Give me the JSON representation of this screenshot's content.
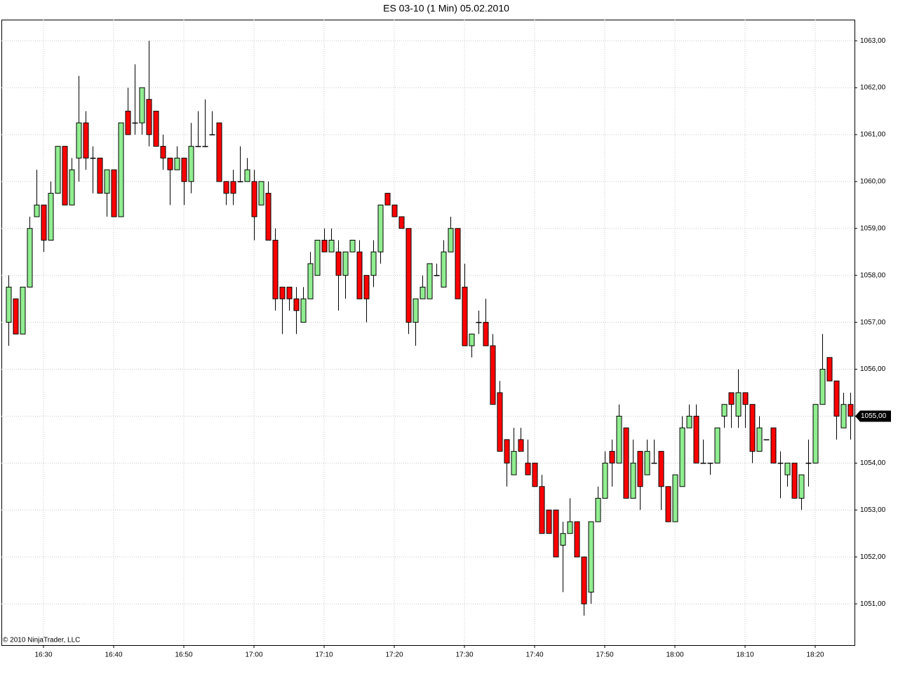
{
  "chart_data": {
    "type": "candlestick",
    "title": "ES 03-10 (1 Min)  05.02.2010",
    "copyright": "© 2010 NinjaTrader, LLC",
    "up_color": "#90ee90",
    "down_color": "#ff0000",
    "grid": true,
    "x": [
      "16:25",
      "16:26",
      "16:27",
      "16:28",
      "16:29",
      "16:30",
      "16:31",
      "16:32",
      "16:33",
      "16:34",
      "16:35",
      "16:36",
      "16:37",
      "16:38",
      "16:39",
      "16:40",
      "16:41",
      "16:42",
      "16:43",
      "16:44",
      "16:45",
      "16:46",
      "16:47",
      "16:48",
      "16:49",
      "16:50",
      "16:51",
      "16:52",
      "16:53",
      "16:54",
      "16:55",
      "16:56",
      "16:57",
      "16:58",
      "16:59",
      "17:00",
      "17:01",
      "17:02",
      "17:03",
      "17:04",
      "17:05",
      "17:06",
      "17:07",
      "17:08",
      "17:09",
      "17:10",
      "17:11",
      "17:12",
      "17:13",
      "17:14",
      "17:15",
      "17:16",
      "17:17",
      "17:18",
      "17:19",
      "17:20",
      "17:21",
      "17:22",
      "17:23",
      "17:24",
      "17:25",
      "17:26",
      "17:27",
      "17:28",
      "17:29",
      "17:30",
      "17:31",
      "17:32",
      "17:33",
      "17:34",
      "17:35",
      "17:36",
      "17:37",
      "17:38",
      "17:39",
      "17:40",
      "17:41",
      "17:42",
      "17:43",
      "17:44",
      "17:45",
      "17:46",
      "17:47",
      "17:48",
      "17:49",
      "17:50",
      "17:51",
      "17:52",
      "17:53",
      "17:54",
      "17:55",
      "17:56",
      "17:57",
      "17:58",
      "17:59",
      "18:00",
      "18:01",
      "18:02",
      "18:03",
      "18:04",
      "18:05",
      "18:06",
      "18:07",
      "18:08",
      "18:09",
      "18:10",
      "18:11",
      "18:12",
      "18:13",
      "18:14",
      "18:15",
      "18:16",
      "18:17",
      "18:18",
      "18:19",
      "18:20",
      "18:21",
      "18:22",
      "18:23",
      "18:24",
      "18:25"
    ],
    "open": [
      1057,
      1057.5,
      1056.75,
      1057.75,
      1059.25,
      1059.5,
      1058.75,
      1059.75,
      1060.75,
      1059.5,
      1060.5,
      1061.25,
      1060.5,
      1060.5,
      1059.75,
      1060.25,
      1059.25,
      1061.5,
      1061.25,
      1061.25,
      1061.75,
      1061.5,
      1060.75,
      1060.5,
      1060.25,
      1060.5,
      1060,
      1060.75,
      1060.75,
      1061,
      1061.25,
      1060,
      1060,
      1060,
      1060,
      1060,
      1059.5,
      1059.75,
      1058.75,
      1057.75,
      1057.75,
      1057.5,
      1057,
      1057.5,
      1058,
      1058.75,
      1058.5,
      1058.5,
      1058,
      1058.5,
      1058.5,
      1058,
      1058,
      1058.5,
      1059.75,
      1059.5,
      1059.25,
      1059,
      1057,
      1057.5,
      1057.5,
      1058,
      1057.75,
      1058.5,
      1059,
      1057.75,
      1056.5,
      1057,
      1057,
      1056.5,
      1055.5,
      1054.5,
      1053.75,
      1054.5,
      1054,
      1054,
      1053.5,
      1053,
      1053,
      1052.25,
      1052.5,
      1052.75,
      1052,
      1051.25,
      1052.75,
      1053.25,
      1054.25,
      1054,
      1054.75,
      1053.25,
      1054.25,
      1053.75,
      1054,
      1054.25,
      1053.5,
      1052.75,
      1053.5,
      1054.75,
      1055,
      1054,
      1054,
      1054,
      1055,
      1055.5,
      1055,
      1055.5,
      1055.25,
      1054.25,
      1054.5,
      1054.75,
      1054,
      1053.75,
      1054,
      1053.25,
      1054,
      1054,
      1055.25,
      1056.25,
      1055.75,
      1054.75,
      1055.25
    ],
    "high": [
      1058,
      1057.5,
      1057.75,
      1059.25,
      1060.25,
      1059.5,
      1060,
      1060.75,
      1060.75,
      1060.5,
      1062.25,
      1061.5,
      1060.75,
      1060.5,
      1060.25,
      1060.25,
      1061.25,
      1062,
      1062.5,
      1062,
      1063,
      1061.5,
      1061,
      1060.5,
      1060.75,
      1060.5,
      1061.25,
      1061.5,
      1061.75,
      1061.5,
      1061.25,
      1060,
      1060.25,
      1060.75,
      1060.5,
      1060.25,
      1060,
      1060,
      1059,
      1057.75,
      1057.75,
      1057.75,
      1057.75,
      1058.5,
      1058.75,
      1059,
      1059,
      1058.75,
      1058.5,
      1058.75,
      1058.75,
      1058,
      1058.75,
      1059.5,
      1059.75,
      1059.5,
      1059.25,
      1059,
      1057.5,
      1058,
      1058.25,
      1058.25,
      1058.75,
      1059.25,
      1059,
      1058.25,
      1056.75,
      1057.25,
      1057.5,
      1056.75,
      1055.75,
      1054.5,
      1054.75,
      1054.75,
      1054.5,
      1054,
      1053.75,
      1053,
      1053,
      1052.75,
      1053.25,
      1052.75,
      1052,
      1052.75,
      1053.5,
      1054.25,
      1054.5,
      1055.25,
      1054.75,
      1054.5,
      1054.25,
      1054.5,
      1054.5,
      1054.25,
      1053.5,
      1053.75,
      1055,
      1055.25,
      1055.25,
      1054.5,
      1054,
      1054.75,
      1055.25,
      1055.5,
      1056,
      1055.5,
      1055.25,
      1055,
      1054.5,
      1054.75,
      1054.25,
      1054,
      1054,
      1053.75,
      1054.5,
      1055.25,
      1056.75,
      1056.25,
      1055.75,
      1055.5,
      1055.5
    ],
    "low": [
      1056.5,
      1056.75,
      1056.75,
      1057.75,
      1059.25,
      1058.5,
      1058.75,
      1059.75,
      1059.5,
      1059.5,
      1060,
      1060.25,
      1059.75,
      1059.75,
      1059.25,
      1059.25,
      1059.25,
      1061,
      1061,
      1061,
      1060.75,
      1060.75,
      1060.25,
      1059.5,
      1060.25,
      1059.5,
      1059.75,
      1060.75,
      1060.75,
      1061,
      1060,
      1059.5,
      1059.5,
      1060,
      1060,
      1058.75,
      1059.5,
      1058.75,
      1057.25,
      1056.75,
      1057.25,
      1056.75,
      1057,
      1057.5,
      1058,
      1058.5,
      1058.5,
      1057.25,
      1057.5,
      1058.5,
      1057.5,
      1057,
      1057.75,
      1058.25,
      1059.5,
      1059.25,
      1059,
      1056.75,
      1056.5,
      1057.5,
      1057.5,
      1058,
      1057.75,
      1058.5,
      1057.5,
      1056.5,
      1056.25,
      1056.75,
      1056.5,
      1055.25,
      1054.25,
      1053.5,
      1053.75,
      1054.25,
      1053.75,
      1053.5,
      1052.5,
      1052.5,
      1052,
      1051.25,
      1052.5,
      1052,
      1050.75,
      1051,
      1052.75,
      1053.25,
      1053.5,
      1054,
      1053.25,
      1053.25,
      1053,
      1053.75,
      1054,
      1053,
      1052.75,
      1052.75,
      1053.5,
      1054.75,
      1054,
      1054,
      1053.75,
      1054,
      1054.75,
      1054.75,
      1054.75,
      1054.75,
      1054,
      1054.25,
      1054.5,
      1054,
      1053.25,
      1053.5,
      1053.25,
      1053,
      1053.5,
      1054,
      1055.25,
      1055.75,
      1054.5,
      1054.75,
      1054.5
    ],
    "close": [
      1057.75,
      1056.75,
      1057.75,
      1059,
      1059.5,
      1058.75,
      1059.75,
      1060.75,
      1059.5,
      1060.25,
      1061.25,
      1060.5,
      1060.5,
      1059.75,
      1060.25,
      1059.25,
      1061.25,
      1061,
      1061.25,
      1062,
      1061,
      1060.75,
      1060.5,
      1060.25,
      1060.5,
      1060,
      1060.75,
      1060.75,
      1060.75,
      1061,
      1060,
      1059.75,
      1059.75,
      1060,
      1060.25,
      1059.25,
      1060,
      1058.75,
      1057.5,
      1057.5,
      1057.5,
      1057.25,
      1057.5,
      1058.25,
      1058.75,
      1058.5,
      1058.75,
      1058,
      1058.5,
      1058.75,
      1057.5,
      1057.5,
      1058.5,
      1059.5,
      1059.5,
      1059.25,
      1059,
      1057,
      1057.5,
      1057.75,
      1058.25,
      1058,
      1058.5,
      1059,
      1057.5,
      1056.5,
      1056.75,
      1057,
      1056.5,
      1055.25,
      1054.25,
      1054,
      1054.25,
      1054.25,
      1053.75,
      1053.5,
      1052.5,
      1052.5,
      1052,
      1052.5,
      1052.75,
      1052,
      1051,
      1052.75,
      1053.25,
      1054,
      1054,
      1055,
      1053.25,
      1054,
      1053.5,
      1054.25,
      1054,
      1053.5,
      1052.75,
      1053.75,
      1054.75,
      1055,
      1054,
      1054,
      1054,
      1054.75,
      1055.25,
      1055.25,
      1055.5,
      1055.25,
      1054.25,
      1054.75,
      1054.5,
      1054,
      1054,
      1054,
      1053.25,
      1053.75,
      1054,
      1055.25,
      1056,
      1055.75,
      1055,
      1055.25,
      1055
    ],
    "ylim": [
      1050.12,
      1063.45
    ],
    "yticks": [
      {
        "value": 1051,
        "label": "1051,00"
      },
      {
        "value": 1052,
        "label": "1052,00"
      },
      {
        "value": 1053,
        "label": "1053,00"
      },
      {
        "value": 1054,
        "label": "1054,00"
      },
      {
        "value": 1055,
        "label": "1055,00"
      },
      {
        "value": 1056,
        "label": "1056,00"
      },
      {
        "value": 1057,
        "label": "1057,00"
      },
      {
        "value": 1058,
        "label": "1058,00"
      },
      {
        "value": 1059,
        "label": "1059,00"
      },
      {
        "value": 1060,
        "label": "1060,00"
      },
      {
        "value": 1061,
        "label": "1061,00"
      },
      {
        "value": 1062,
        "label": "1062,00"
      },
      {
        "value": 1063,
        "label": "1063,00"
      }
    ],
    "xticks": [
      "16:30",
      "16:40",
      "16:50",
      "17:00",
      "17:10",
      "17:20",
      "17:30",
      "17:40",
      "17:50",
      "18:00",
      "18:10",
      "18:20"
    ],
    "last_price": {
      "value": 1055,
      "label": "1055,00"
    }
  }
}
